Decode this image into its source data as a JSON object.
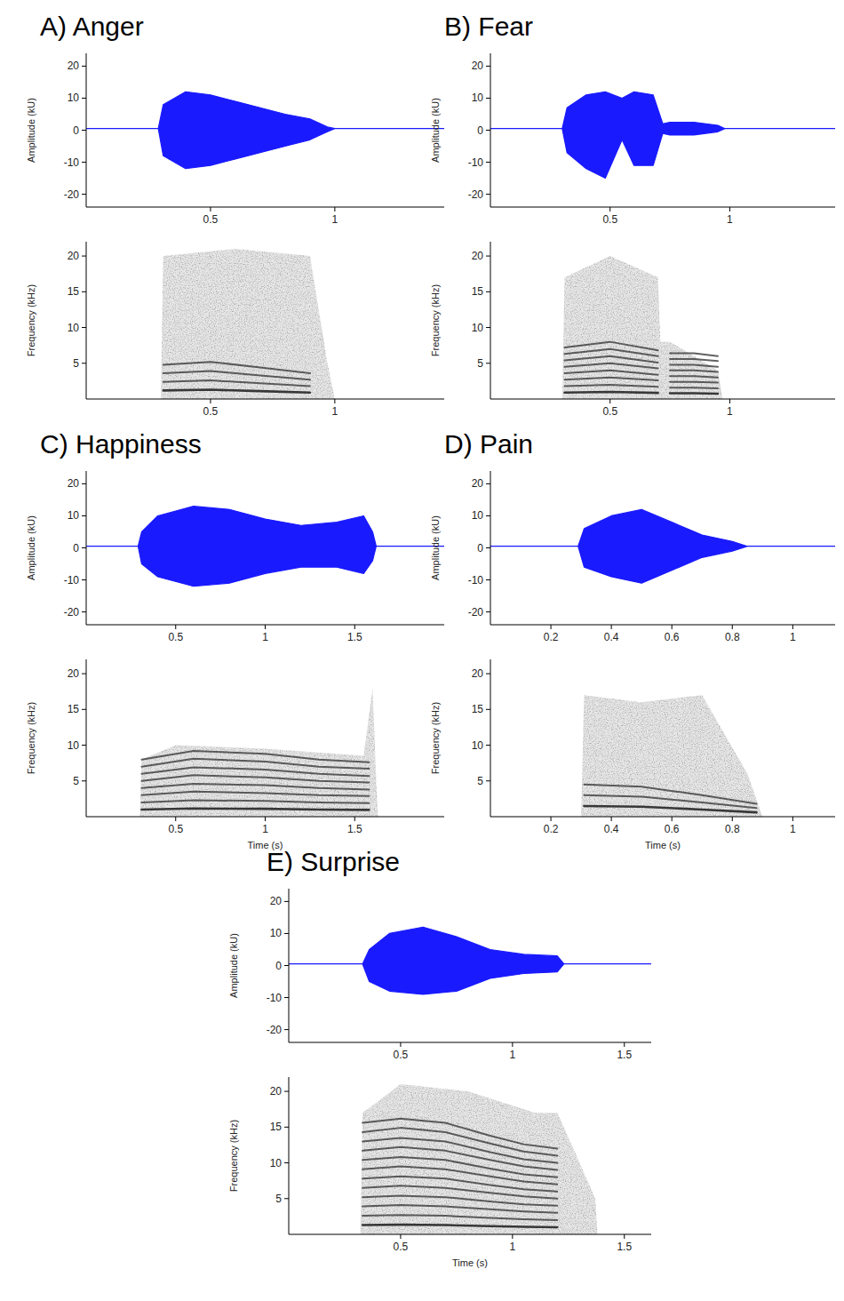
{
  "chart_data": [
    {
      "type": "area",
      "title": "A) Anger",
      "y_label": "Amplitude (kU)",
      "color": "#1a1aff",
      "xlim": [
        0,
        1.44
      ],
      "xticks": [
        0.5,
        1
      ],
      "ylim": [
        -24,
        24
      ],
      "yticks": [
        -20,
        -10,
        0,
        10,
        20
      ],
      "x": [
        0,
        0.29,
        0.31,
        0.4,
        0.5,
        0.6,
        0.7,
        0.8,
        0.9,
        0.97,
        1.0,
        1.44
      ],
      "series": [
        {
          "color": "#1a1aff",
          "values": [
            0.5,
            0.5,
            8,
            12,
            11,
            9,
            7,
            5,
            3.5,
            1,
            0.5,
            0.5
          ]
        },
        {
          "color": "#1a1aff",
          "values": [
            0.5,
            0.5,
            -8,
            -12,
            -11,
            -9,
            -7,
            -5,
            -3,
            -0.5,
            0.5,
            0.5
          ]
        }
      ]
    },
    {
      "type": "spectrogram",
      "y_label": "Frequency (kHz)",
      "color": "#d4d4d4",
      "xlim": [
        0,
        1.44
      ],
      "xticks": [
        0.5,
        1
      ],
      "ylim": [
        0,
        22
      ],
      "yticks": [
        5,
        10,
        15,
        20
      ],
      "noise_x": [
        0.3,
        0.31,
        0.6,
        0.9,
        0.97,
        1.0
      ],
      "noise_top": [
        0,
        20,
        21,
        20,
        5,
        0
      ],
      "x": [
        0.31,
        0.5,
        0.7,
        0.9
      ],
      "series": [
        {
          "color": "#2e2e2e",
          "values": [
            1.2,
            1.3,
            1.1,
            0.9
          ]
        },
        {
          "color": "#2e2e2e",
          "values": [
            2.4,
            2.6,
            2.2,
            1.8
          ]
        },
        {
          "color": "#2e2e2e",
          "values": [
            3.6,
            3.9,
            3.3,
            2.7
          ]
        },
        {
          "color": "#2e2e2e",
          "values": [
            4.8,
            5.2,
            4.4,
            3.6
          ]
        }
      ]
    },
    {
      "type": "area",
      "title": "B) Fear",
      "y_label": "Amplitude (kU)",
      "color": "#1a1aff",
      "xlim": [
        0,
        1.44
      ],
      "xticks": [
        0.5,
        1
      ],
      "ylim": [
        -24,
        24
      ],
      "yticks": [
        -20,
        -10,
        0,
        10,
        20
      ],
      "x": [
        0,
        0.3,
        0.32,
        0.4,
        0.48,
        0.55,
        0.6,
        0.68,
        0.72,
        0.75,
        0.85,
        0.95,
        0.98,
        1.44
      ],
      "series": [
        {
          "color": "#1a1aff",
          "values": [
            0.5,
            0.5,
            7,
            11,
            12,
            10,
            12,
            11,
            2,
            2.5,
            2.5,
            1.5,
            0.5,
            0.5
          ]
        },
        {
          "color": "#1a1aff",
          "values": [
            0.5,
            0.5,
            -7,
            -12,
            -15,
            -3,
            -11,
            -11,
            -1,
            -1.5,
            -1.5,
            -0.5,
            0.5,
            0.5
          ]
        }
      ]
    },
    {
      "type": "spectrogram",
      "y_label": "Frequency (kHz)",
      "color": "#d4d4d4",
      "xlim": [
        0,
        1.44
      ],
      "xticks": [
        0.5,
        1
      ],
      "ylim": [
        0,
        22
      ],
      "yticks": [
        5,
        10,
        15,
        20
      ],
      "noise_x": [
        0.3,
        0.31,
        0.5,
        0.7,
        0.71,
        0.75,
        0.95,
        0.97
      ],
      "noise_top": [
        0,
        17,
        20,
        17,
        8,
        8,
        4,
        0
      ],
      "x": [
        0.31,
        0.5,
        0.7,
        0.72,
        0.75,
        0.85,
        0.95
      ],
      "series": [
        {
          "color": "#2e2e2e",
          "values": [
            0.9,
            1.0,
            0.85,
            null,
            0.8,
            0.8,
            0.75
          ]
        },
        {
          "color": "#2e2e2e",
          "values": [
            1.8,
            2.0,
            1.7,
            null,
            1.6,
            1.6,
            1.5
          ]
        },
        {
          "color": "#2e2e2e",
          "values": [
            2.7,
            3.0,
            2.6,
            null,
            2.4,
            2.4,
            2.3
          ]
        },
        {
          "color": "#2e2e2e",
          "values": [
            3.6,
            4.0,
            3.4,
            null,
            3.2,
            3.2,
            3.0
          ]
        },
        {
          "color": "#2e2e2e",
          "values": [
            4.5,
            5.0,
            4.3,
            null,
            4.0,
            4.0,
            3.8
          ]
        },
        {
          "color": "#2e2e2e",
          "values": [
            5.4,
            6.0,
            5.1,
            null,
            4.8,
            4.8,
            4.5
          ]
        },
        {
          "color": "#2e2e2e",
          "values": [
            6.3,
            7.0,
            6.0,
            null,
            5.6,
            5.6,
            5.3
          ]
        },
        {
          "color": "#2e2e2e",
          "values": [
            7.2,
            8.0,
            6.8,
            null,
            6.4,
            6.4,
            6.0
          ]
        }
      ]
    },
    {
      "type": "area",
      "title": "C) Happiness",
      "y_label": "Amplitude (kU)",
      "color": "#1a1aff",
      "xlim": [
        0,
        2
      ],
      "xticks": [
        0.5,
        1,
        1.5
      ],
      "ylim": [
        -24,
        24
      ],
      "yticks": [
        -20,
        -10,
        0,
        10,
        20
      ],
      "x": [
        0,
        0.29,
        0.31,
        0.4,
        0.6,
        0.8,
        1.0,
        1.2,
        1.4,
        1.55,
        1.6,
        1.62,
        2.0
      ],
      "series": [
        {
          "color": "#1a1aff",
          "values": [
            0.5,
            0.5,
            5,
            10,
            13,
            12,
            9,
            7,
            8,
            10,
            5,
            0.5,
            0.5
          ]
        },
        {
          "color": "#1a1aff",
          "values": [
            0.5,
            0.5,
            -5,
            -9,
            -12,
            -11,
            -8,
            -6,
            -6,
            -8,
            -4,
            0.5,
            0.5
          ]
        }
      ]
    },
    {
      "type": "spectrogram",
      "y_label": "Frequency (kHz)",
      "x_label": "Time (s)",
      "color": "#d4d4d4",
      "xlim": [
        0,
        2
      ],
      "xticks": [
        0.5,
        1,
        1.5
      ],
      "ylim": [
        0,
        22
      ],
      "yticks": [
        5,
        10,
        15,
        20
      ],
      "noise_x": [
        0.3,
        0.31,
        0.5,
        1.0,
        1.55,
        1.6,
        1.62,
        1.63
      ],
      "noise_top": [
        0,
        8,
        10,
        9.5,
        8.5,
        18,
        5,
        0
      ],
      "x": [
        0.31,
        0.6,
        1.0,
        1.3,
        1.58
      ],
      "series": [
        {
          "color": "#2e2e2e",
          "values": [
            1.0,
            1.15,
            1.1,
            1.0,
            0.95
          ]
        },
        {
          "color": "#2e2e2e",
          "values": [
            2.0,
            2.3,
            2.2,
            2.0,
            1.9
          ]
        },
        {
          "color": "#2e2e2e",
          "values": [
            3.0,
            3.5,
            3.3,
            3.0,
            2.9
          ]
        },
        {
          "color": "#2e2e2e",
          "values": [
            4.0,
            4.6,
            4.4,
            4.0,
            3.8
          ]
        },
        {
          "color": "#2e2e2e",
          "values": [
            5.0,
            5.8,
            5.5,
            5.0,
            4.8
          ]
        },
        {
          "color": "#2e2e2e",
          "values": [
            6.0,
            6.9,
            6.6,
            6.0,
            5.7
          ]
        },
        {
          "color": "#2e2e2e",
          "values": [
            7.0,
            8.1,
            7.7,
            7.0,
            6.7
          ]
        },
        {
          "color": "#2e2e2e",
          "values": [
            8.0,
            9.2,
            8.8,
            8.0,
            7.6
          ]
        }
      ]
    },
    {
      "type": "area",
      "title": "D) Pain",
      "y_label": "Amplitude (kU)",
      "color": "#1a1aff",
      "xlim": [
        0,
        1.14
      ],
      "xticks": [
        0.2,
        0.4,
        0.6,
        0.8,
        1
      ],
      "ylim": [
        -24,
        24
      ],
      "yticks": [
        -20,
        -10,
        0,
        10,
        20
      ],
      "x": [
        0,
        0.29,
        0.31,
        0.4,
        0.5,
        0.6,
        0.7,
        0.8,
        0.85,
        1.14
      ],
      "series": [
        {
          "color": "#1a1aff",
          "values": [
            0.5,
            0.5,
            6,
            10,
            12,
            8,
            4,
            2,
            0.5,
            0.5
          ]
        },
        {
          "color": "#1a1aff",
          "values": [
            0.5,
            0.5,
            -6,
            -9,
            -11,
            -7,
            -3,
            -1,
            0.5,
            0.5
          ]
        }
      ]
    },
    {
      "type": "spectrogram",
      "y_label": "Frequency (kHz)",
      "x_label": "Time (s)",
      "color": "#d4d4d4",
      "xlim": [
        0,
        1.14
      ],
      "xticks": [
        0.2,
        0.4,
        0.6,
        0.8,
        1
      ],
      "ylim": [
        0,
        22
      ],
      "yticks": [
        5,
        10,
        15,
        20
      ],
      "noise_x": [
        0.3,
        0.31,
        0.5,
        0.7,
        0.85,
        0.9
      ],
      "noise_top": [
        0,
        17,
        16,
        17,
        6,
        0
      ],
      "x": [
        0.31,
        0.5,
        0.7,
        0.88
      ],
      "series": [
        {
          "color": "#2e2e2e",
          "values": [
            1.5,
            1.4,
            1.0,
            0.6
          ]
        },
        {
          "color": "#2e2e2e",
          "values": [
            3.0,
            2.8,
            2.0,
            1.2
          ]
        },
        {
          "color": "#2e2e2e",
          "values": [
            4.5,
            4.2,
            3.0,
            1.8
          ]
        }
      ]
    },
    {
      "type": "area",
      "title": "E) Surprise",
      "y_label": "Amplitude (kU)",
      "color": "#1a1aff",
      "xlim": [
        0,
        1.62
      ],
      "xticks": [
        0.5,
        1,
        1.5
      ],
      "ylim": [
        -24,
        24
      ],
      "yticks": [
        -20,
        -10,
        0,
        10,
        20
      ],
      "x": [
        0,
        0.33,
        0.36,
        0.45,
        0.6,
        0.75,
        0.9,
        1.05,
        1.2,
        1.23,
        1.62
      ],
      "series": [
        {
          "color": "#1a1aff",
          "values": [
            0.5,
            0.5,
            5,
            10,
            12,
            9,
            5,
            3.5,
            3,
            0.5,
            0.5
          ]
        },
        {
          "color": "#1a1aff",
          "values": [
            0.5,
            0.5,
            -5,
            -8,
            -9,
            -8,
            -4,
            -2.5,
            -2,
            0.5,
            0.5
          ]
        }
      ]
    },
    {
      "type": "spectrogram",
      "y_label": "Frequency (kHz)",
      "x_label": "Time (s)",
      "color": "#d4d4d4",
      "xlim": [
        0,
        1.62
      ],
      "xticks": [
        0.5,
        1,
        1.5
      ],
      "ylim": [
        0,
        22
      ],
      "yticks": [
        5,
        10,
        15,
        20
      ],
      "noise_x": [
        0.32,
        0.33,
        0.5,
        0.8,
        1.1,
        1.2,
        1.3,
        1.37,
        1.38
      ],
      "noise_top": [
        0,
        17,
        21,
        20,
        17,
        17,
        10,
        5,
        0
      ],
      "x": [
        0.33,
        0.5,
        0.7,
        0.9,
        1.05,
        1.2
      ],
      "series": [
        {
          "color": "#2e2e2e",
          "values": [
            1.3,
            1.35,
            1.3,
            1.15,
            1.05,
            1.0
          ]
        },
        {
          "color": "#2e2e2e",
          "values": [
            2.6,
            2.7,
            2.6,
            2.3,
            2.1,
            2.0
          ]
        },
        {
          "color": "#2e2e2e",
          "values": [
            3.9,
            4.1,
            3.9,
            3.5,
            3.2,
            3.0
          ]
        },
        {
          "color": "#2e2e2e",
          "values": [
            5.2,
            5.4,
            5.2,
            4.6,
            4.2,
            4.0
          ]
        },
        {
          "color": "#2e2e2e",
          "values": [
            6.5,
            6.8,
            6.5,
            5.8,
            5.3,
            5.0
          ]
        },
        {
          "color": "#2e2e2e",
          "values": [
            7.8,
            8.1,
            7.8,
            6.9,
            6.3,
            6.0
          ]
        },
        {
          "color": "#2e2e2e",
          "values": [
            9.1,
            9.5,
            9.1,
            8.1,
            7.4,
            7.0
          ]
        },
        {
          "color": "#2e2e2e",
          "values": [
            10.4,
            10.8,
            10.4,
            9.2,
            8.4,
            8.0
          ]
        },
        {
          "color": "#2e2e2e",
          "values": [
            11.7,
            12.2,
            11.7,
            10.4,
            9.5,
            9.0
          ]
        },
        {
          "color": "#2e2e2e",
          "values": [
            13.0,
            13.5,
            13.0,
            11.5,
            10.5,
            10.0
          ]
        },
        {
          "color": "#2e2e2e",
          "values": [
            14.3,
            14.9,
            14.3,
            12.7,
            11.6,
            11.0
          ]
        },
        {
          "color": "#2e2e2e",
          "values": [
            15.6,
            16.2,
            15.6,
            13.8,
            12.6,
            12.0
          ]
        }
      ]
    }
  ]
}
